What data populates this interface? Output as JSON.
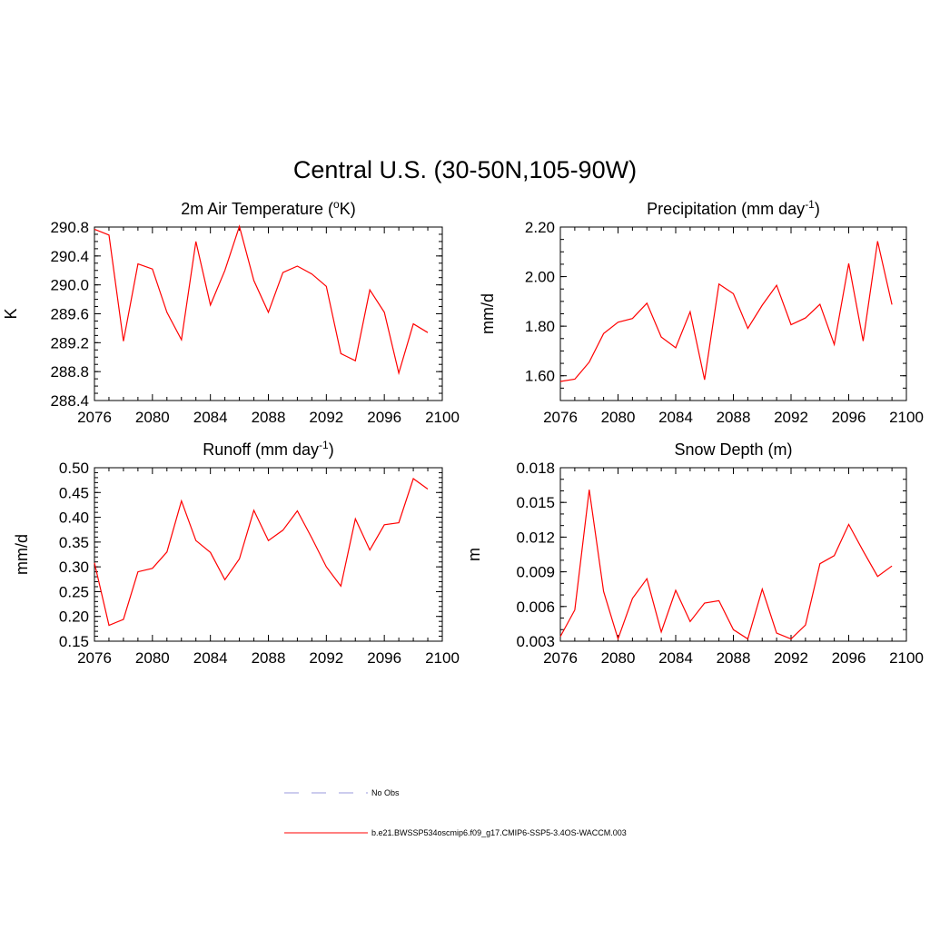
{
  "figure_title": "Central U.S. (30-50N,105-90W)",
  "legend": {
    "items": [
      {
        "label": "No Obs",
        "color": "#9999dd",
        "dash": true
      },
      {
        "label": "b.e21.BWSSP534oscmip6.f09_g17.CMIP6-SSP5-3.4OS-WACCM.003",
        "color": "#ff0000",
        "dash": false
      }
    ]
  },
  "chart_data": [
    {
      "type": "line",
      "title": "2m Air Temperature (",
      "title_sup": "o",
      "title_post": "K)",
      "ylabel": "K",
      "xlim": [
        2076,
        2100
      ],
      "ylim": [
        288.4,
        290.8
      ],
      "x_ticks": [
        "2076",
        "2080",
        "2084",
        "2088",
        "2092",
        "2096",
        "2100"
      ],
      "y_ticks": [
        "288.4",
        "288.8",
        "289.2",
        "289.6",
        "290.0",
        "290.4",
        "290.8"
      ],
      "series": [
        {
          "color": "#ff0000",
          "x": [
            2076,
            2077,
            2078,
            2079,
            2080,
            2081,
            2082,
            2083,
            2084,
            2085,
            2086,
            2087,
            2088,
            2089,
            2090,
            2091,
            2092,
            2093,
            2094,
            2095,
            2096,
            2097,
            2098,
            2099
          ],
          "values": [
            290.77,
            290.69,
            289.22,
            290.29,
            290.22,
            289.62,
            289.24,
            290.6,
            289.72,
            290.2,
            290.81,
            290.06,
            289.62,
            290.17,
            290.26,
            290.15,
            289.98,
            289.05,
            288.95,
            289.93,
            289.62,
            288.78,
            289.46,
            289.34
          ]
        }
      ]
    },
    {
      "type": "line",
      "title": "Precipitation (mm day",
      "title_sup": "-1",
      "title_post": ")",
      "ylabel": "mm/d",
      "xlim": [
        2076,
        2100
      ],
      "ylim": [
        1.5,
        2.2
      ],
      "x_ticks": [
        "2076",
        "2080",
        "2084",
        "2088",
        "2092",
        "2096",
        "2100"
      ],
      "y_ticks": [
        "1.60",
        "1.80",
        "2.00",
        "2.20"
      ],
      "series": [
        {
          "color": "#ff0000",
          "x": [
            2076,
            2077,
            2078,
            2079,
            2080,
            2081,
            2082,
            2083,
            2084,
            2085,
            2086,
            2087,
            2088,
            2089,
            2090,
            2091,
            2092,
            2093,
            2094,
            2095,
            2096,
            2097,
            2098,
            2099
          ],
          "values": [
            1.577,
            1.586,
            1.655,
            1.77,
            1.816,
            1.831,
            1.893,
            1.756,
            1.713,
            1.858,
            1.584,
            1.97,
            1.931,
            1.791,
            1.885,
            1.965,
            1.806,
            1.833,
            1.888,
            1.726,
            2.053,
            1.74,
            2.143,
            1.887
          ]
        }
      ]
    },
    {
      "type": "line",
      "title": "Runoff (mm day",
      "title_sup": "-1",
      "title_post": ")",
      "ylabel": "mm/d",
      "xlim": [
        2076,
        2100
      ],
      "ylim": [
        0.15,
        0.5
      ],
      "x_ticks": [
        "2076",
        "2080",
        "2084",
        "2088",
        "2092",
        "2096",
        "2100"
      ],
      "y_ticks": [
        "0.15",
        "0.20",
        "0.25",
        "0.30",
        "0.35",
        "0.40",
        "0.45",
        "0.50"
      ],
      "series": [
        {
          "color": "#ff0000",
          "x": [
            2076,
            2077,
            2078,
            2079,
            2080,
            2081,
            2082,
            2083,
            2084,
            2085,
            2086,
            2087,
            2088,
            2089,
            2090,
            2091,
            2092,
            2093,
            2094,
            2095,
            2096,
            2097,
            2098,
            2099
          ],
          "values": [
            0.308,
            0.182,
            0.194,
            0.29,
            0.297,
            0.33,
            0.433,
            0.353,
            0.329,
            0.274,
            0.316,
            0.414,
            0.353,
            0.374,
            0.413,
            0.358,
            0.3,
            0.261,
            0.397,
            0.334,
            0.385,
            0.389,
            0.478,
            0.457
          ]
        }
      ]
    },
    {
      "type": "line",
      "title": "Snow Depth (m)",
      "title_sup": "",
      "title_post": "",
      "ylabel": "m",
      "xlim": [
        2076,
        2100
      ],
      "ylim": [
        0.003,
        0.018
      ],
      "x_ticks": [
        "2076",
        "2080",
        "2084",
        "2088",
        "2092",
        "2096",
        "2100"
      ],
      "y_ticks": [
        "0.003",
        "0.006",
        "0.009",
        "0.012",
        "0.015",
        "0.018"
      ],
      "series": [
        {
          "color": "#ff0000",
          "x": [
            2076,
            2077,
            2078,
            2079,
            2080,
            2081,
            2082,
            2083,
            2084,
            2085,
            2086,
            2087,
            2088,
            2089,
            2090,
            2091,
            2092,
            2093,
            2094,
            2095,
            2096,
            2097,
            2098,
            2099
          ],
          "values": [
            0.0034,
            0.0057,
            0.0161,
            0.0073,
            0.0032,
            0.0067,
            0.0084,
            0.0038,
            0.0074,
            0.0047,
            0.0063,
            0.0065,
            0.004,
            0.0032,
            0.0075,
            0.0037,
            0.0032,
            0.0044,
            0.0097,
            0.0104,
            0.0131,
            0.0108,
            0.0086,
            0.0095
          ]
        }
      ]
    }
  ]
}
